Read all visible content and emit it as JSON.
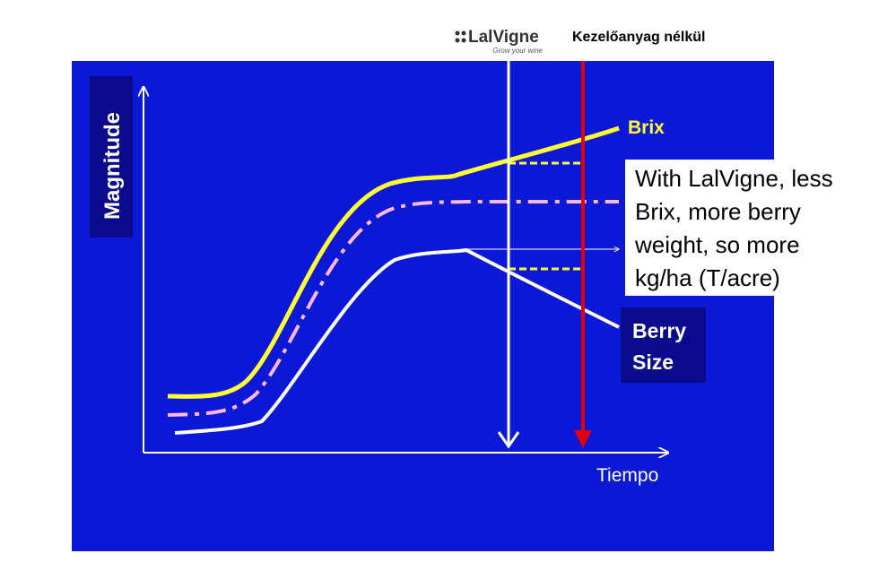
{
  "logo": {
    "name": "LalVigne",
    "tagline": "Grow your wine"
  },
  "header": {
    "untreated": "Kezelőanyag nélkül"
  },
  "axes": {
    "y_label": "Magnitude",
    "x_label": "Tiempo"
  },
  "curves": {
    "brix": "Brix",
    "berry_size": [
      "Berry",
      "Size"
    ]
  },
  "callout": [
    "With LalVigne, less",
    "Brix, more berry",
    "weight, so  more",
    "kg/ha (T/acre)"
  ]
}
